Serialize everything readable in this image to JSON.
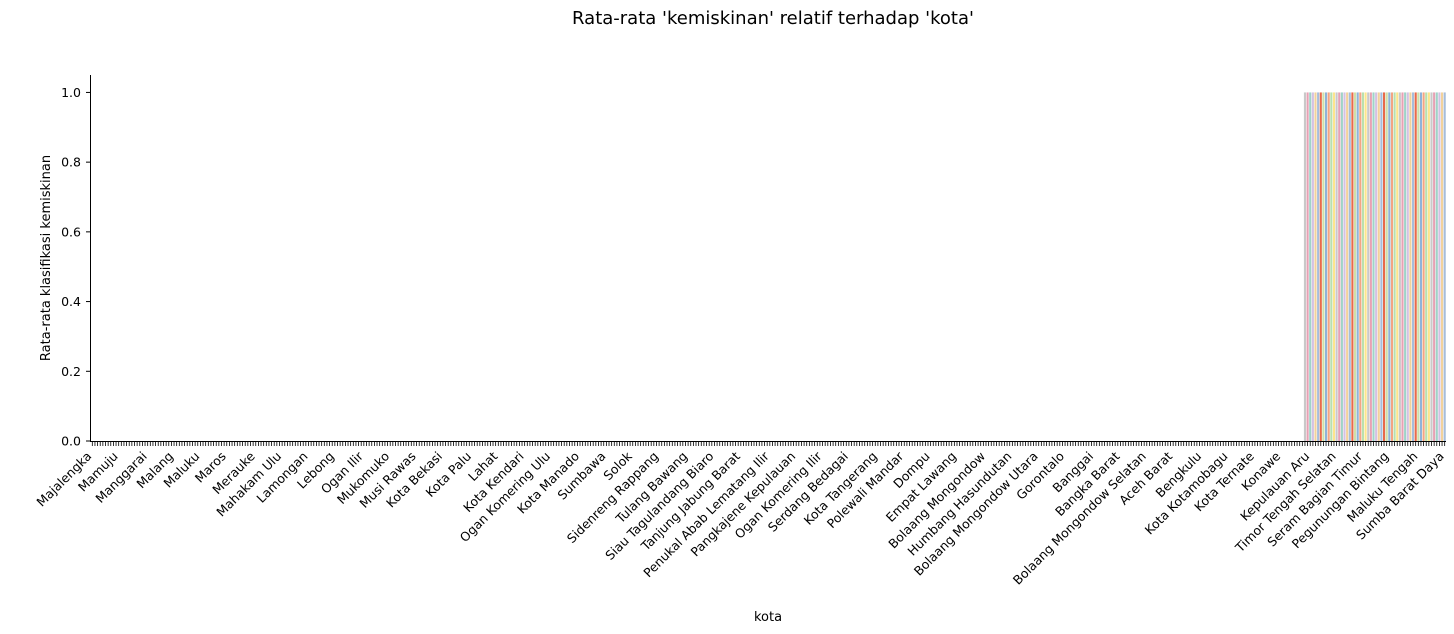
{
  "chart_data": {
    "type": "bar",
    "title": "Rata-rata 'kemiskinan' relatif terhadap 'kota'",
    "xlabel": "kota",
    "ylabel": "Rata-rata klasifikasi kemiskinan",
    "ylim": [
      0,
      1.05
    ],
    "yticks": [
      "0.0",
      "0.2",
      "0.4",
      "0.6",
      "0.8",
      "1.0"
    ],
    "grid": false,
    "legend": "none",
    "num_categories": 514,
    "zero_count": 460,
    "bar_value_nonzero": 1.0,
    "palette": [
      "#8fb3d9",
      "#f4a582",
      "#b8e0b0",
      "#fde58c",
      "#c9c9c9",
      "#e7a1b4",
      "#9fd3c7",
      "#d4c1e3",
      "#f2d29b",
      "#a6bddb",
      "#e86a4a",
      "#cfe0a8"
    ],
    "visible_tick_labels": [
      "Majalengka",
      "Mamuju",
      "Manggarai",
      "Malang",
      "Maluku",
      "Maros",
      "Merauke",
      "Mahakam Ulu",
      "Lamongan",
      "Lebong",
      "Ogan Ilir",
      "Mukomuko",
      "Musi Rawas",
      "Kota Bekasi",
      "Kota Palu",
      "Lahat",
      "Kota Kendari",
      "Ogan Komering Ulu",
      "Kota Manado",
      "Sumbawa",
      "Solok",
      "Sidenreng Rappang",
      "Tulang Bawang",
      "Siau Tagulandang Biaro",
      "Tanjung Jabung Barat",
      "Penukal Abab Lematang Ilir",
      "Pangkajene Kepulauan",
      "Ogan Komering Ilir",
      "Serdang Bedagai",
      "Kota Tangerang",
      "Polewali Mandar",
      "Dompu",
      "Empat Lawang",
      "Bolaang Mongondow",
      "Humbang Hasundutan",
      "Bolaang Mongondow Utara",
      "Gorontalo",
      "Banggai",
      "Bangka Barat",
      "Bolaang Mongondow Selatan",
      "Aceh Barat",
      "Bengkulu",
      "Kota Kotamobagu",
      "Kota Ternate",
      "Konawe",
      "Kepulauan Aru",
      "Timor Tengah Selatan",
      "Seram Bagian Timur",
      "Pegunungan Bintang",
      "Maluku Tengah",
      "Sumba Barat Daya"
    ]
  }
}
